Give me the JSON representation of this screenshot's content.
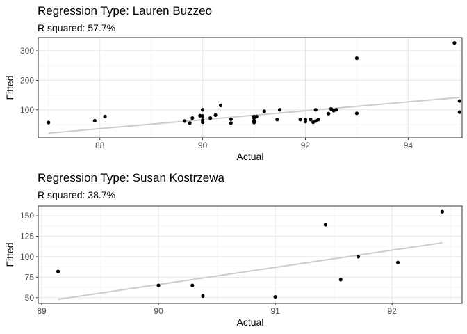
{
  "chart_data": [
    {
      "type": "scatter",
      "title": "Regression Type: Lauren Buzzeo",
      "subtitle": "R squared: 57.7%",
      "xlabel": "Actual",
      "ylabel": "Fitted",
      "xlim": [
        86.8,
        95.05
      ],
      "ylim": [
        5,
        345
      ],
      "x_ticks": [
        88,
        90,
        92,
        94
      ],
      "y_ticks": [
        100,
        200,
        300
      ],
      "grid": true,
      "legend": "none",
      "point_color": "#000000",
      "line_color": "#cccccc",
      "fit_line": [
        {
          "x": 87,
          "y": 21
        },
        {
          "x": 95,
          "y": 142
        }
      ],
      "points": [
        {
          "x": 87.0,
          "y": 57
        },
        {
          "x": 87.9,
          "y": 63
        },
        {
          "x": 88.1,
          "y": 77
        },
        {
          "x": 89.65,
          "y": 62
        },
        {
          "x": 89.75,
          "y": 55
        },
        {
          "x": 89.8,
          "y": 72
        },
        {
          "x": 89.95,
          "y": 80
        },
        {
          "x": 90.0,
          "y": 100
        },
        {
          "x": 90.0,
          "y": 79
        },
        {
          "x": 90.0,
          "y": 65
        },
        {
          "x": 90.0,
          "y": 58
        },
        {
          "x": 90.15,
          "y": 72
        },
        {
          "x": 90.25,
          "y": 82
        },
        {
          "x": 90.35,
          "y": 115
        },
        {
          "x": 90.55,
          "y": 68
        },
        {
          "x": 90.55,
          "y": 55
        },
        {
          "x": 91.0,
          "y": 77
        },
        {
          "x": 91.0,
          "y": 72
        },
        {
          "x": 91.0,
          "y": 62
        },
        {
          "x": 91.0,
          "y": 57
        },
        {
          "x": 91.05,
          "y": 77
        },
        {
          "x": 91.2,
          "y": 95
        },
        {
          "x": 91.45,
          "y": 67
        },
        {
          "x": 91.5,
          "y": 100
        },
        {
          "x": 91.9,
          "y": 67
        },
        {
          "x": 92.0,
          "y": 60
        },
        {
          "x": 92.0,
          "y": 67
        },
        {
          "x": 92.1,
          "y": 67
        },
        {
          "x": 92.15,
          "y": 58
        },
        {
          "x": 92.2,
          "y": 62
        },
        {
          "x": 92.2,
          "y": 100
        },
        {
          "x": 92.25,
          "y": 67
        },
        {
          "x": 92.45,
          "y": 87
        },
        {
          "x": 92.5,
          "y": 103
        },
        {
          "x": 92.55,
          "y": 97
        },
        {
          "x": 92.6,
          "y": 100
        },
        {
          "x": 93.0,
          "y": 275
        },
        {
          "x": 93.0,
          "y": 88
        },
        {
          "x": 94.9,
          "y": 327
        },
        {
          "x": 95.0,
          "y": 130
        },
        {
          "x": 95.0,
          "y": 92
        }
      ]
    },
    {
      "type": "scatter",
      "title": "Regression Type: Susan Kostrzewa",
      "subtitle": "R squared: 38.7%",
      "xlabel": "Actual",
      "ylabel": "Fitted",
      "xlim": [
        88.97,
        92.6
      ],
      "ylim": [
        43,
        162
      ],
      "x_ticks": [
        89,
        90,
        91,
        92
      ],
      "y_ticks": [
        50,
        75,
        100,
        125,
        150
      ],
      "grid": true,
      "legend": "none",
      "point_color": "#000000",
      "line_color": "#cccccc",
      "fit_line": [
        {
          "x": 89.14,
          "y": 48
        },
        {
          "x": 92.43,
          "y": 117
        }
      ],
      "points": [
        {
          "x": 89.14,
          "y": 82
        },
        {
          "x": 90.0,
          "y": 65
        },
        {
          "x": 90.29,
          "y": 65
        },
        {
          "x": 90.38,
          "y": 52
        },
        {
          "x": 91.0,
          "y": 51
        },
        {
          "x": 91.43,
          "y": 139
        },
        {
          "x": 91.56,
          "y": 72
        },
        {
          "x": 91.71,
          "y": 100
        },
        {
          "x": 92.05,
          "y": 93
        },
        {
          "x": 92.43,
          "y": 155
        }
      ]
    }
  ]
}
